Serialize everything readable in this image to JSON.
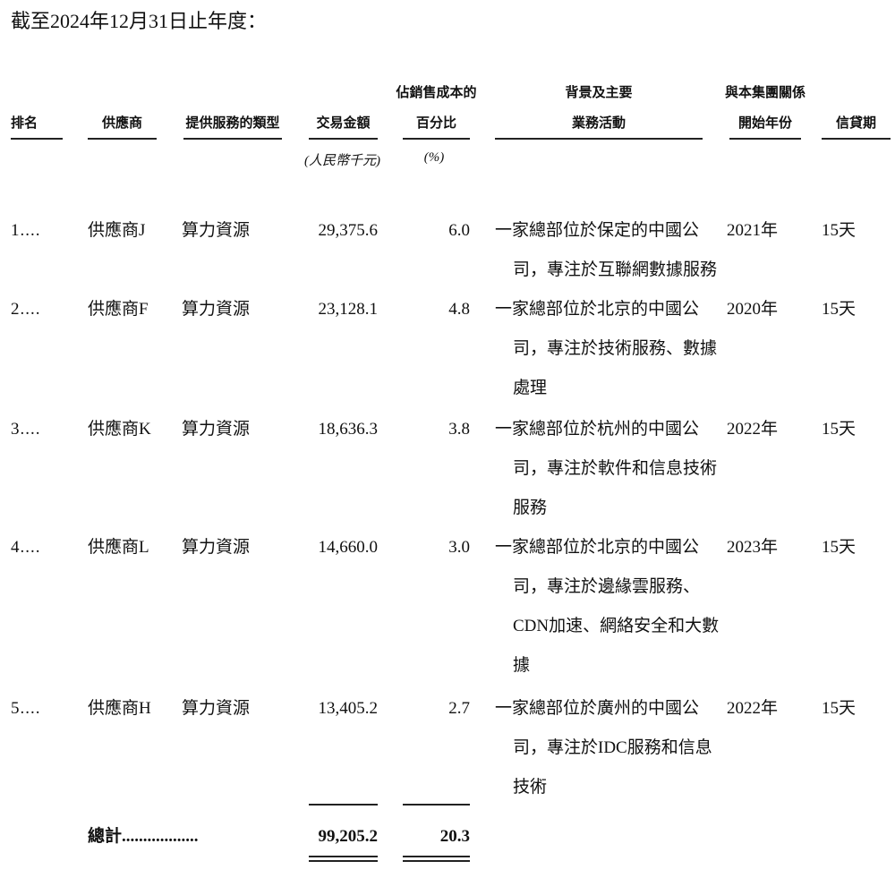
{
  "title": "截至2024年12月31日止年度：",
  "headers": {
    "rank": "排名",
    "supplier": "供應商",
    "service_type": "提供服務的類型",
    "amount": "交易金額",
    "pct_line1": "佔銷售成本的",
    "pct_line2": "百分比",
    "bg_line1": "背景及主要",
    "bg_line2": "業務活動",
    "year_line1": "與本集團關係",
    "year_line2": "開始年份",
    "credit": "信貸期"
  },
  "units": {
    "amount": "(人民幣千元)",
    "pct": "(%)"
  },
  "rows": [
    {
      "rank": "1....",
      "supplier": "供應商J",
      "service": "算力資源",
      "amount": "29,375.6",
      "pct": "6.0",
      "desc": [
        "一家總部位於保定的中國公",
        "司，專注於互聯網數據服務"
      ],
      "year": "2021年",
      "credit": "15天"
    },
    {
      "rank": "2....",
      "supplier": "供應商F",
      "service": "算力資源",
      "amount": "23,128.1",
      "pct": "4.8",
      "desc": [
        "一家總部位於北京的中國公",
        "司，專注於技術服務、數據",
        "處理"
      ],
      "year": "2020年",
      "credit": "15天"
    },
    {
      "rank": "3....",
      "supplier": "供應商K",
      "service": "算力資源",
      "amount": "18,636.3",
      "pct": "3.8",
      "desc": [
        "一家總部位於杭州的中國公",
        "司，專注於軟件和信息技術",
        "服務"
      ],
      "year": "2022年",
      "credit": "15天"
    },
    {
      "rank": "4....",
      "supplier": "供應商L",
      "service": "算力資源",
      "amount": "14,660.0",
      "pct": "3.0",
      "desc": [
        "一家總部位於北京的中國公",
        "司，專注於邊緣雲服務、",
        "CDN加速、網絡安全和大數",
        "據"
      ],
      "year": "2023年",
      "credit": "15天"
    },
    {
      "rank": "5....",
      "supplier": "供應商H",
      "service": "算力資源",
      "amount": "13,405.2",
      "pct": "2.7",
      "desc": [
        "一家總部位於廣州的中國公",
        "司，專注於IDC服務和信息",
        "技術"
      ],
      "year": "2022年",
      "credit": "15天"
    }
  ],
  "total": {
    "label": "總計..................",
    "amount": "99,205.2",
    "pct": "20.3"
  }
}
